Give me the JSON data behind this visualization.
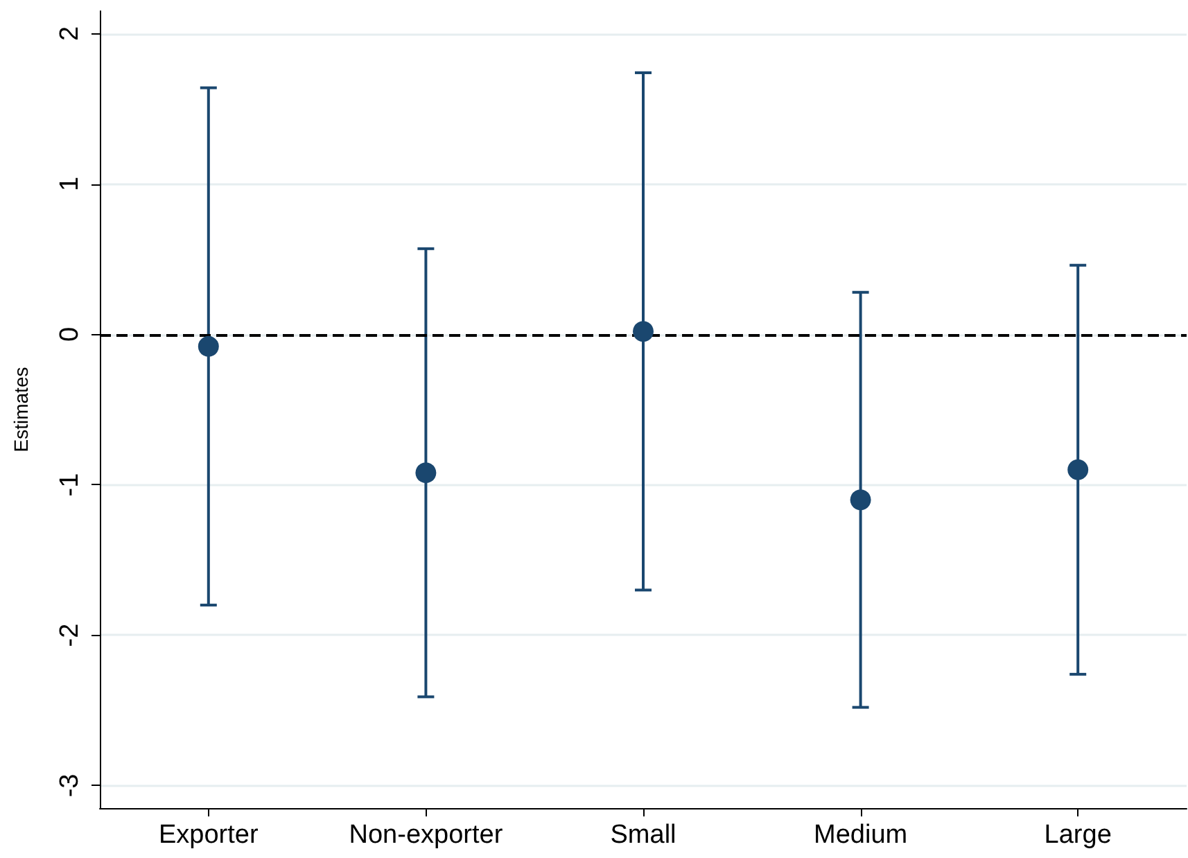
{
  "chart_data": {
    "type": "scatter",
    "ylabel": "Estimates",
    "categories": [
      "Exporter",
      "Non-exporter",
      "Small",
      "Medium",
      "Large"
    ],
    "values": [
      -0.08,
      -0.92,
      0.02,
      -1.1,
      -0.9
    ],
    "errors": [
      [
        -1.8,
        1.64
      ],
      [
        -2.41,
        0.57
      ],
      [
        -1.7,
        1.74
      ],
      [
        -2.48,
        0.28
      ],
      [
        -2.26,
        0.46
      ]
    ],
    "color": "#1a476f",
    "marker": "circle",
    "ylim": [
      -3.15,
      2.15
    ],
    "yticks": [
      -3,
      -2,
      -1,
      0,
      1,
      2
    ],
    "grid": "y",
    "ref_lines": [
      {
        "axis": "y",
        "value": 0,
        "color": "#000000",
        "line_style": "dashed"
      }
    ]
  }
}
